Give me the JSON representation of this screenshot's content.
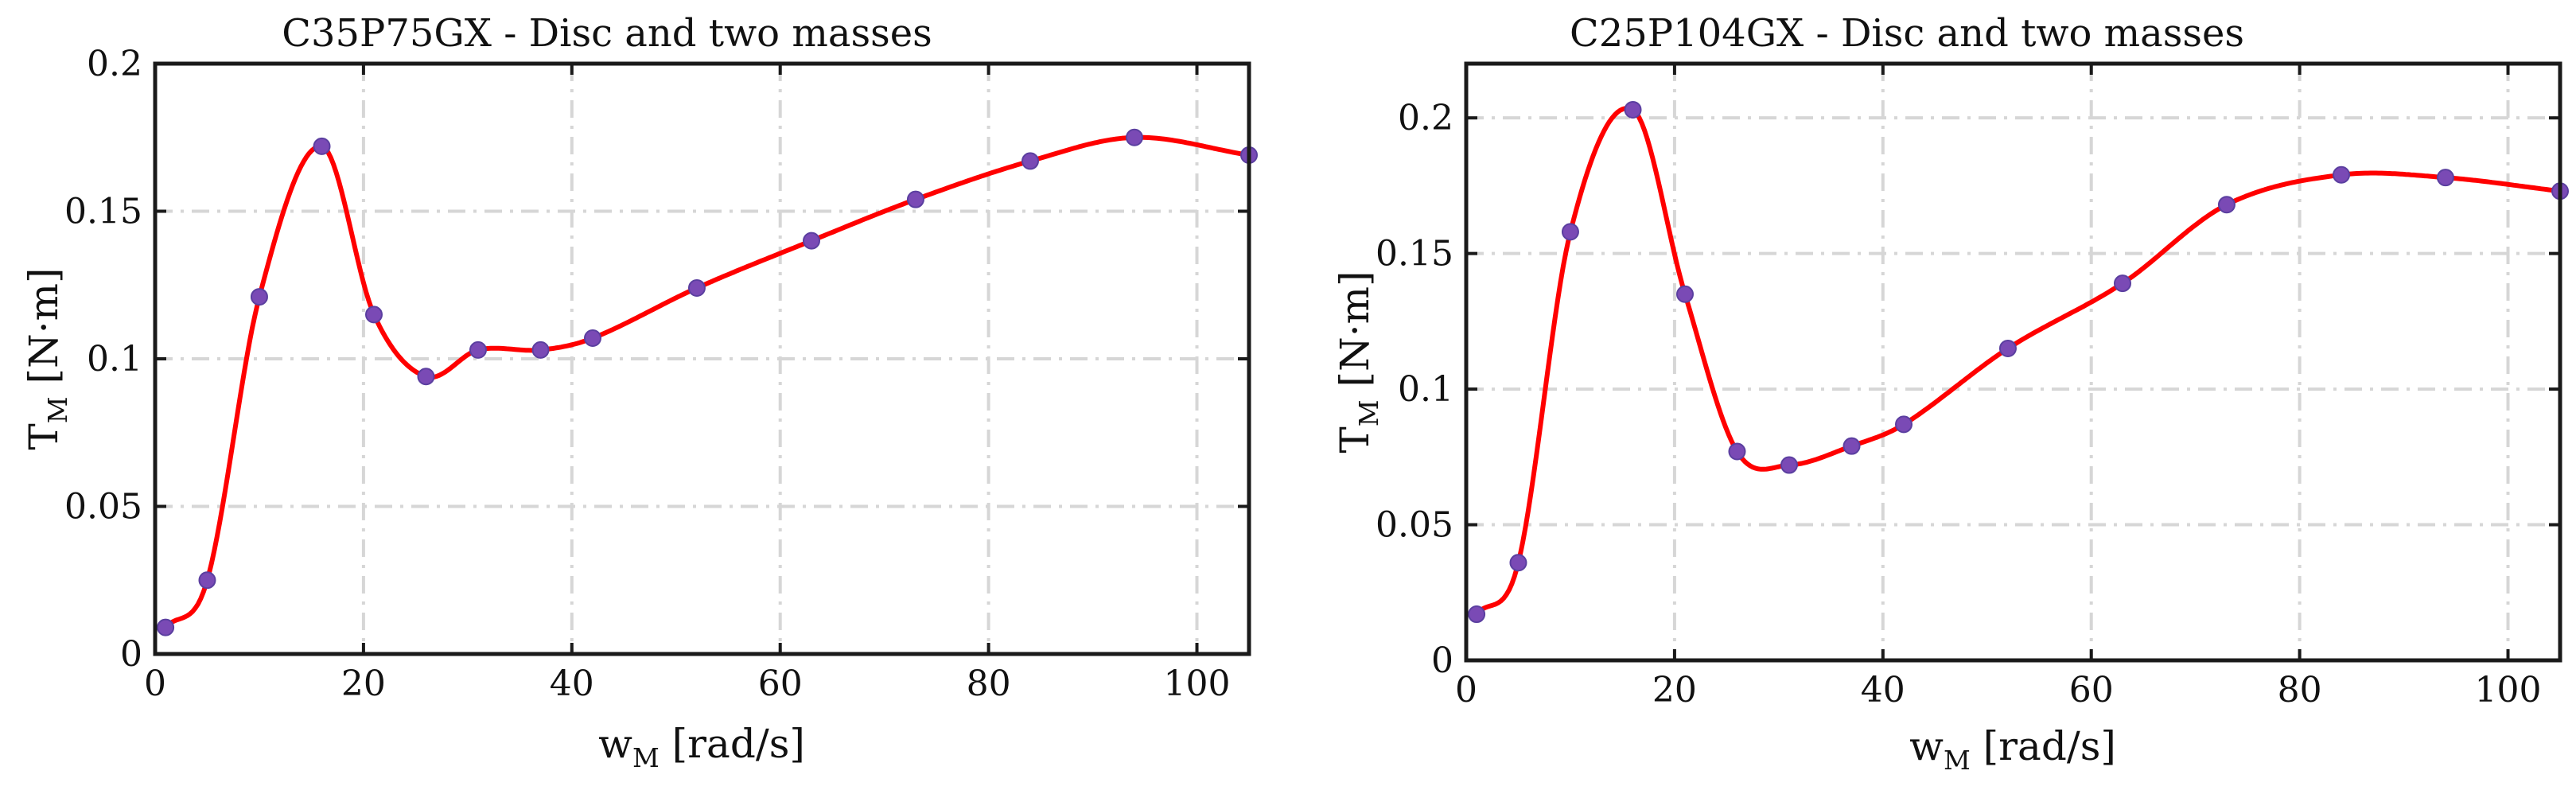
{
  "chart_data": [
    {
      "type": "line",
      "title": "C35P75GX - Disc and two masses",
      "xlabel": {
        "main": "w",
        "sub": "M",
        "unit": " [rad/s]"
      },
      "ylabel": {
        "main": "T",
        "sub": "M",
        "unit": " [N·m]"
      },
      "xlim": [
        0,
        105
      ],
      "ylim": [
        0,
        0.2
      ],
      "xticks": [
        0,
        20,
        40,
        60,
        80,
        100
      ],
      "xtick_labels": [
        "0",
        "20",
        "40",
        "60",
        "80",
        "100"
      ],
      "yticks": [
        0,
        0.05,
        0.1,
        0.15,
        0.2
      ],
      "ytick_labels": [
        "0",
        "0.05",
        "0.1",
        "0.15",
        "0.2"
      ],
      "grid": true,
      "series": [
        {
          "name": "C35P75GX",
          "line_color": "#ff0000",
          "marker_color": "#7a4ab5",
          "x": [
            1,
            5,
            10,
            16,
            21,
            26,
            31,
            37,
            42,
            52,
            63,
            73,
            84,
            94,
            105
          ],
          "y": [
            0.009,
            0.025,
            0.121,
            0.172,
            0.115,
            0.094,
            0.103,
            0.103,
            0.107,
            0.124,
            0.14,
            0.154,
            0.167,
            0.175,
            0.169
          ]
        }
      ]
    },
    {
      "type": "line",
      "title": "C25P104GX - Disc and two masses",
      "xlabel": {
        "main": "w",
        "sub": "M",
        "unit": " [rad/s]"
      },
      "ylabel": {
        "main": "T",
        "sub": "M",
        "unit": " [N·m]"
      },
      "xlim": [
        0,
        105
      ],
      "ylim": [
        0,
        0.22
      ],
      "xticks": [
        0,
        20,
        40,
        60,
        80,
        100
      ],
      "xtick_labels": [
        "0",
        "20",
        "40",
        "60",
        "80",
        "100"
      ],
      "yticks": [
        0,
        0.05,
        0.1,
        0.15,
        0.2
      ],
      "ytick_labels": [
        "0",
        "0.05",
        "0.1",
        "0.15",
        "0.2"
      ],
      "grid": true,
      "series": [
        {
          "name": "C25P104GX",
          "line_color": "#ff0000",
          "marker_color": "#7a4ab5",
          "x": [
            1,
            5,
            10,
            16,
            21,
            26,
            31,
            37,
            42,
            52,
            63,
            73,
            84,
            94,
            105
          ],
          "y": [
            0.017,
            0.036,
            0.158,
            0.203,
            0.135,
            0.077,
            0.072,
            0.079,
            0.087,
            0.115,
            0.139,
            0.168,
            0.179,
            0.178,
            0.173
          ]
        }
      ]
    }
  ]
}
